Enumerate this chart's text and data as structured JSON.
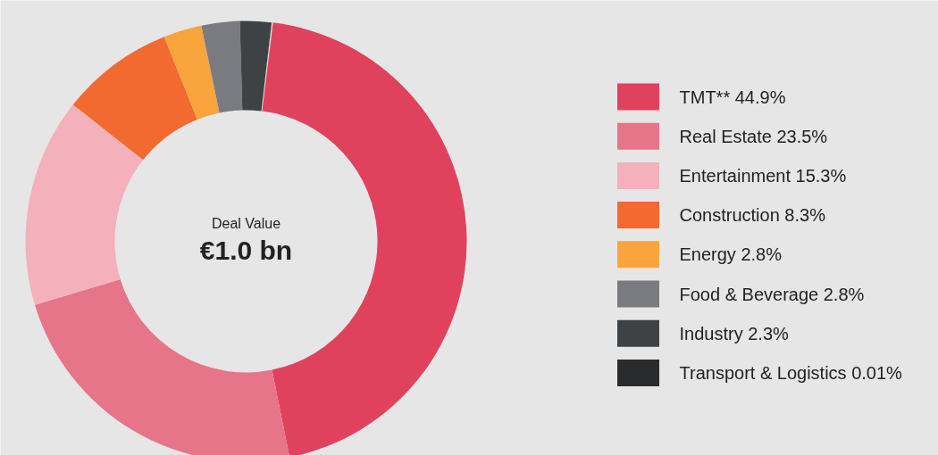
{
  "chart_data": {
    "type": "donut",
    "categories": [
      "TMT**",
      "Real Estate",
      "Entertainment",
      "Construction",
      "Energy",
      "Food & Beverage",
      "Industry",
      "Transport & Logistics"
    ],
    "values": [
      44.9,
      23.5,
      15.3,
      8.3,
      2.8,
      2.8,
      2.3,
      0.01
    ],
    "value_labels": [
      "44.9%",
      "23.5%",
      "15.3%",
      "8.3%",
      "2.8%",
      "2.8%",
      "2.3%",
      "0.01%"
    ],
    "colors": [
      "#e0425e",
      "#e6758a",
      "#f4b0bb",
      "#f26a30",
      "#f9a43c",
      "#7a7b80",
      "#3f4245",
      "#2a2b2d"
    ],
    "annotations": [
      "Deal Value",
      "€1.0 bn"
    ],
    "legend": "right"
  }
}
